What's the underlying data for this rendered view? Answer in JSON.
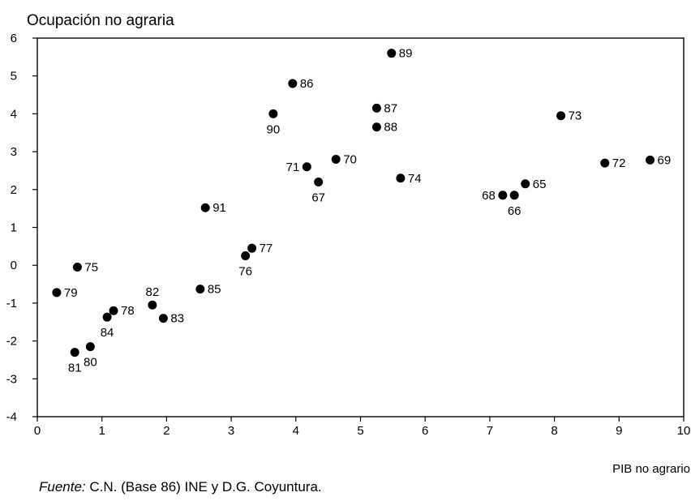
{
  "chart_data": {
    "type": "scatter",
    "ylabel": "Ocupación no agraria",
    "xlabel": "PIB no agrario",
    "xlim": [
      0,
      10
    ],
    "ylim": [
      -4,
      6
    ],
    "xticks": [
      "0",
      "1",
      "2",
      "3",
      "4",
      "5",
      "6",
      "7",
      "8",
      "9",
      "10"
    ],
    "yticks": [
      "6",
      "5",
      "4",
      "3",
      "2",
      "1",
      "0",
      "-1",
      "-2",
      "-3",
      "-4"
    ],
    "grid": false,
    "points": [
      {
        "label": "89",
        "x": 5.48,
        "y": 5.6,
        "pos": "right"
      },
      {
        "label": "86",
        "x": 3.95,
        "y": 4.8,
        "pos": "right"
      },
      {
        "label": "87",
        "x": 5.25,
        "y": 4.15,
        "pos": "right"
      },
      {
        "label": "90",
        "x": 3.65,
        "y": 4.0,
        "pos": "below"
      },
      {
        "label": "73",
        "x": 8.1,
        "y": 3.95,
        "pos": "right"
      },
      {
        "label": "88",
        "x": 5.25,
        "y": 3.65,
        "pos": "right"
      },
      {
        "label": "70",
        "x": 4.62,
        "y": 2.8,
        "pos": "right"
      },
      {
        "label": "69",
        "x": 9.48,
        "y": 2.78,
        "pos": "right"
      },
      {
        "label": "72",
        "x": 8.78,
        "y": 2.7,
        "pos": "right"
      },
      {
        "label": "71",
        "x": 4.17,
        "y": 2.6,
        "pos": "left"
      },
      {
        "label": "74",
        "x": 5.62,
        "y": 2.3,
        "pos": "right"
      },
      {
        "label": "67",
        "x": 4.35,
        "y": 2.2,
        "pos": "below"
      },
      {
        "label": "65",
        "x": 7.55,
        "y": 2.15,
        "pos": "right"
      },
      {
        "label": "68",
        "x": 7.2,
        "y": 1.85,
        "pos": "left"
      },
      {
        "label": "66",
        "x": 7.38,
        "y": 1.85,
        "pos": "below"
      },
      {
        "label": "91",
        "x": 2.6,
        "y": 1.52,
        "pos": "right"
      },
      {
        "label": "77",
        "x": 3.32,
        "y": 0.45,
        "pos": "right"
      },
      {
        "label": "76",
        "x": 3.22,
        "y": 0.25,
        "pos": "below"
      },
      {
        "label": "75",
        "x": 0.62,
        "y": -0.05,
        "pos": "right"
      },
      {
        "label": "85",
        "x": 2.52,
        "y": -0.63,
        "pos": "right"
      },
      {
        "label": "79",
        "x": 0.3,
        "y": -0.72,
        "pos": "right"
      },
      {
        "label": "82",
        "x": 1.78,
        "y": -1.05,
        "pos": "above"
      },
      {
        "label": "78",
        "x": 1.18,
        "y": -1.2,
        "pos": "right"
      },
      {
        "label": "84",
        "x": 1.08,
        "y": -1.37,
        "pos": "below"
      },
      {
        "label": "83",
        "x": 1.95,
        "y": -1.4,
        "pos": "right"
      },
      {
        "label": "80",
        "x": 0.82,
        "y": -2.15,
        "pos": "below"
      },
      {
        "label": "81",
        "x": 0.58,
        "y": -2.3,
        "pos": "below"
      }
    ]
  },
  "source": {
    "prefix": "Fuente:",
    "text": " C.N. (Base 86) INE y D.G. Coyuntura."
  }
}
